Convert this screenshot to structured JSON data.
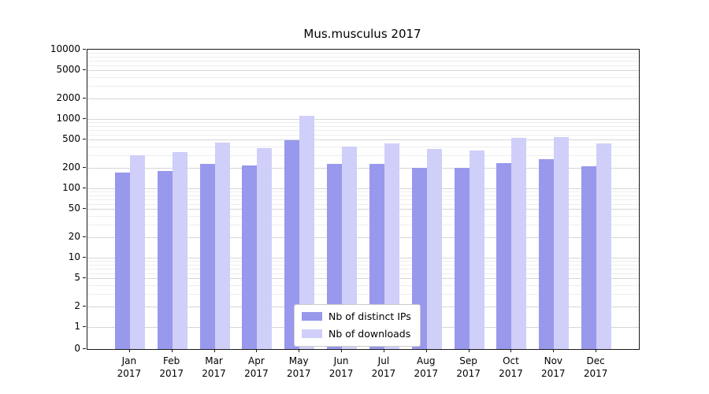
{
  "title": "Mus.musculus 2017",
  "chart_data": {
    "type": "bar",
    "title": "Mus.musculus 2017",
    "categories": [
      "Jan",
      "Feb",
      "Mar",
      "Apr",
      "May",
      "Jun",
      "Jul",
      "Aug",
      "Sep",
      "Oct",
      "Nov",
      "Dec"
    ],
    "year_label": "2017",
    "series": [
      {
        "name": "Nb of distinct IPs",
        "color": "#9898ec",
        "values": [
          170,
          180,
          225,
          215,
          500,
          225,
          225,
          200,
          195,
          230,
          260,
          210
        ]
      },
      {
        "name": "Nb of downloads",
        "color": "#cfcff9",
        "values": [
          300,
          330,
          460,
          380,
          1100,
          400,
          450,
          370,
          350,
          530,
          550,
          450
        ]
      }
    ],
    "y_ticks": [
      0,
      1,
      2,
      5,
      10,
      20,
      50,
      100,
      200,
      500,
      1000,
      2000,
      5000,
      10000
    ],
    "y_scale": "symlog",
    "ylim": [
      0,
      10000
    ],
    "xlabel": "",
    "ylabel": "",
    "grid": true,
    "legend_position": "lower center"
  }
}
